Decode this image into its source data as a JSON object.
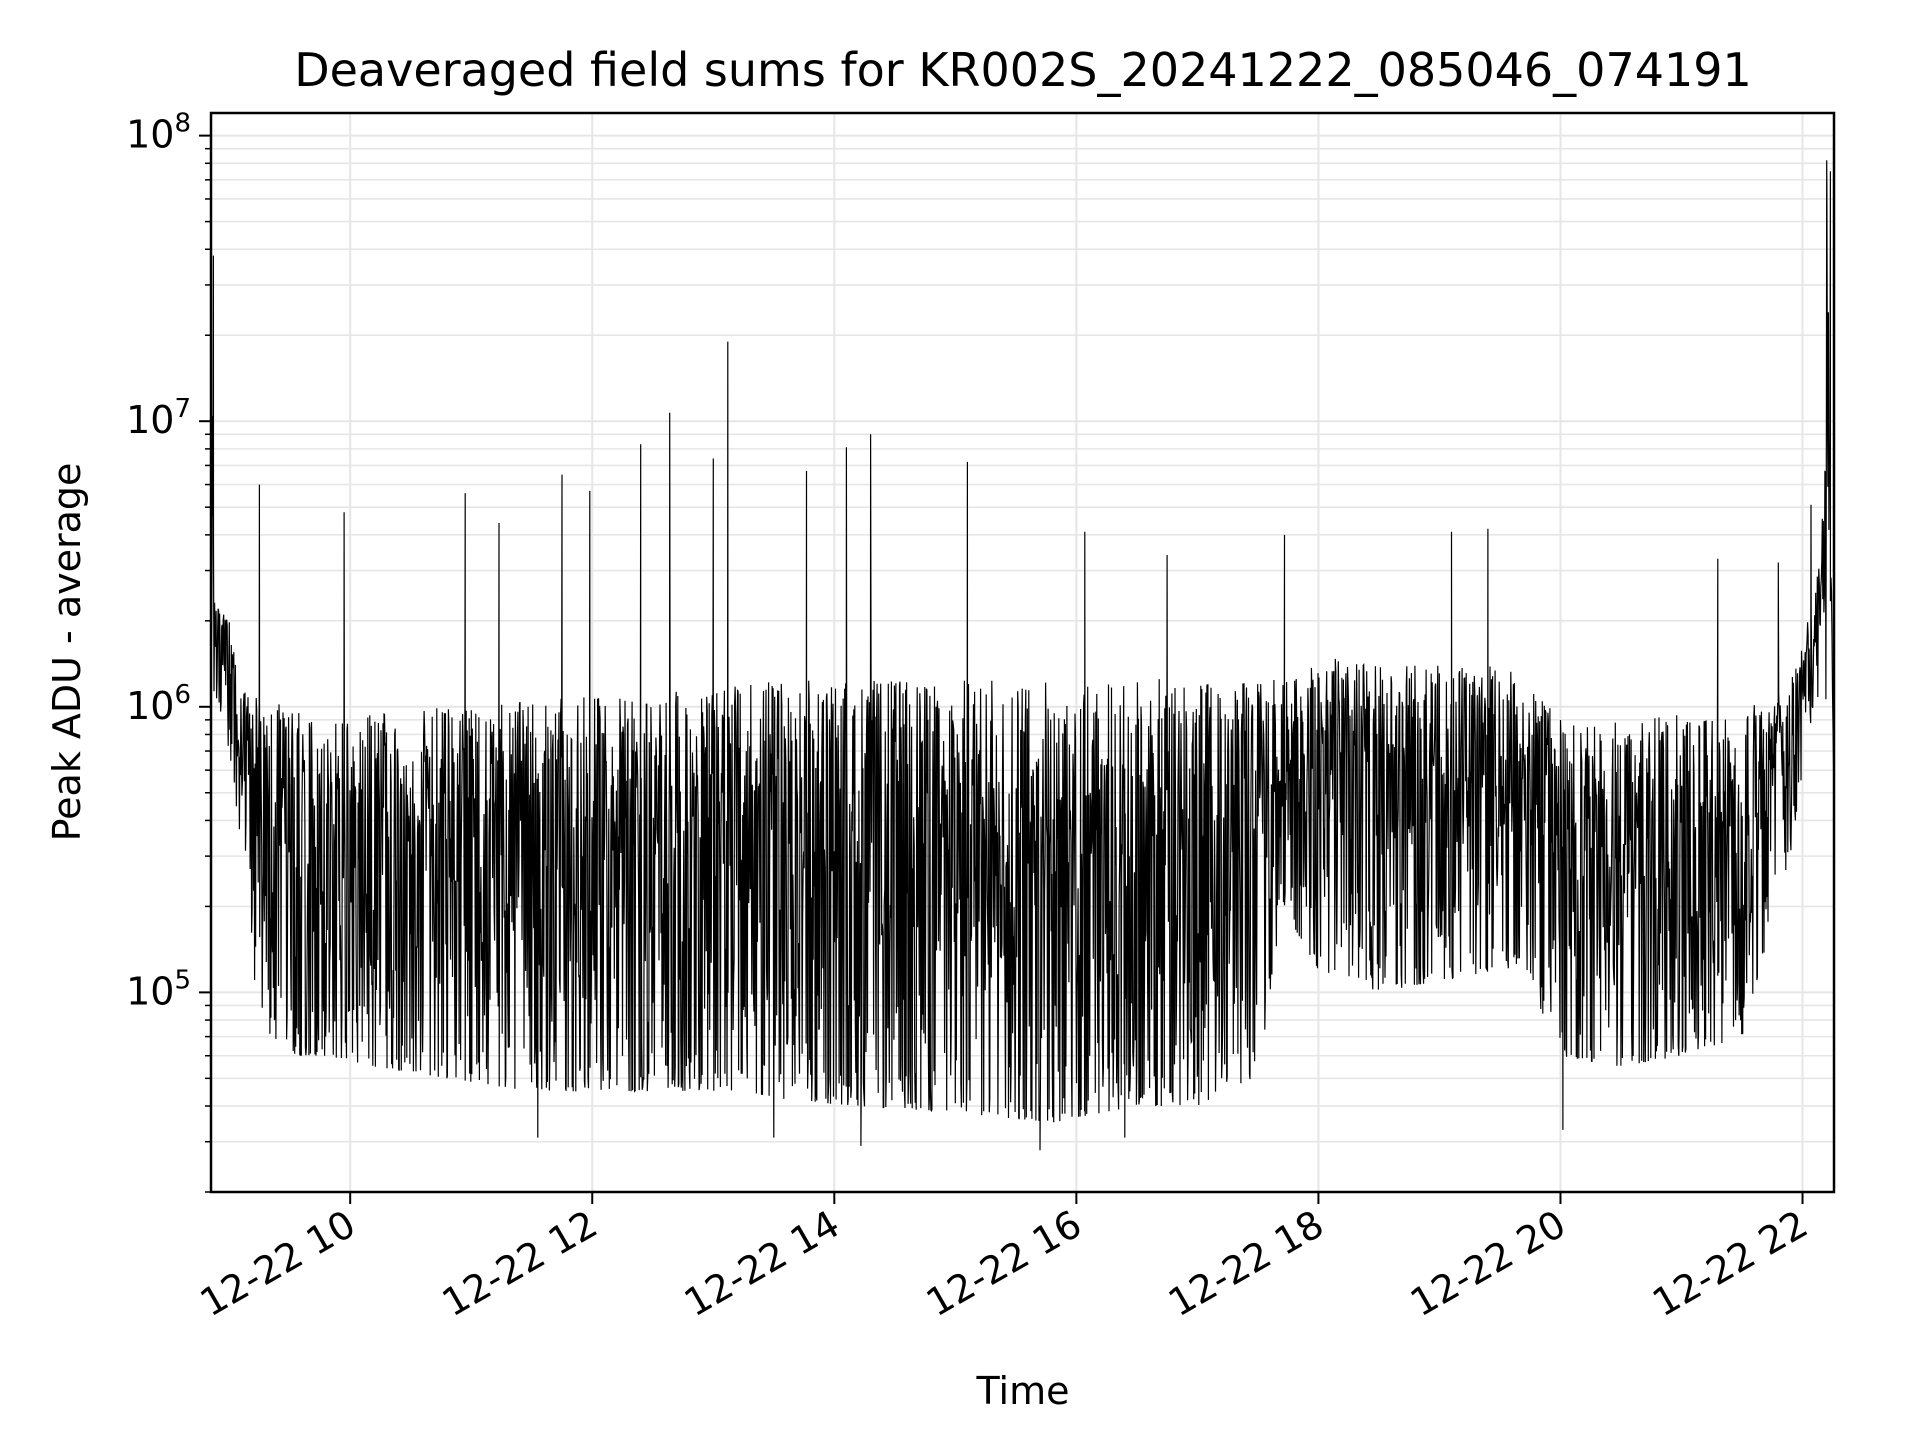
{
  "chart_data": {
    "type": "line",
    "title": "Deaveraged field sums for KR002S_20241222_085046_074191",
    "xlabel": "Time",
    "ylabel": "Peak ADU - average",
    "yscale": "log",
    "ylim": [
      20000,
      120000000
    ],
    "xlim_hours": [
      8.85,
      22.26
    ],
    "grid": true,
    "line_color": "#000000",
    "x_ticks": [
      {
        "hour": 10,
        "label": "12-22 10"
      },
      {
        "hour": 12,
        "label": "12-22 12"
      },
      {
        "hour": 14,
        "label": "12-22 14"
      },
      {
        "hour": 16,
        "label": "12-22 16"
      },
      {
        "hour": 18,
        "label": "12-22 18"
      },
      {
        "hour": 20,
        "label": "12-22 20"
      },
      {
        "hour": 22,
        "label": "12-22 22"
      }
    ],
    "y_ticks": [
      {
        "value": 100000,
        "base": "10",
        "exp": "5"
      },
      {
        "value": 1000000,
        "base": "10",
        "exp": "6"
      },
      {
        "value": 10000000,
        "base": "10",
        "exp": "7"
      },
      {
        "value": 100000000,
        "base": "10",
        "exp": "8"
      }
    ],
    "series": [
      {
        "x_hours": [
          8.85,
          8.88,
          8.92,
          9.0,
          9.1,
          9.2,
          9.3,
          9.5,
          9.8,
          10.2,
          10.8,
          11.5,
          12.2,
          13.0,
          13.2,
          13.6,
          14.2,
          15.0,
          15.8,
          16.5,
          17.0,
          17.5,
          17.7,
          18.0,
          18.5,
          19.0,
          19.5,
          19.7,
          20.0,
          20.5,
          21.0,
          21.5,
          21.9,
          22.0,
          22.1,
          22.17,
          22.2,
          22.26
        ],
        "upper": [
          30000000,
          2500000,
          2300000,
          2000000,
          1100000,
          1200000,
          1100000,
          1000000,
          900000,
          950000,
          1000000,
          1050000,
          1100000,
          1150000,
          1250000,
          1250000,
          1250000,
          1250000,
          1250000,
          1250000,
          1250000,
          1250000,
          1300000,
          1500000,
          1400000,
          1400000,
          1400000,
          1300000,
          900000,
          900000,
          950000,
          1000000,
          1200000,
          1800000,
          2300000,
          5000000,
          80000000,
          500000
        ],
        "lower": [
          1200000,
          1100000,
          1000000,
          700000,
          300000,
          110000,
          70000,
          60000,
          60000,
          55000,
          50000,
          45000,
          45000,
          45000,
          45000,
          42000,
          40000,
          38000,
          35000,
          40000,
          40000,
          50000,
          200000,
          120000,
          100000,
          110000,
          120000,
          120000,
          60000,
          55000,
          60000,
          70000,
          300000,
          600000,
          1000000,
          1200000,
          1000000,
          500000
        ],
        "spikes": [
          {
            "hour": 8.87,
            "value": 38000000
          },
          {
            "hour": 9.25,
            "value": 6000000
          },
          {
            "hour": 9.95,
            "value": 4800000
          },
          {
            "hour": 10.95,
            "value": 5600000
          },
          {
            "hour": 11.23,
            "value": 4400000
          },
          {
            "hour": 11.75,
            "value": 6500000
          },
          {
            "hour": 11.98,
            "value": 5700000
          },
          {
            "hour": 12.4,
            "value": 8300000
          },
          {
            "hour": 12.64,
            "value": 10700000
          },
          {
            "hour": 13.0,
            "value": 7400000
          },
          {
            "hour": 13.12,
            "value": 19000000
          },
          {
            "hour": 13.77,
            "value": 6700000
          },
          {
            "hour": 14.1,
            "value": 8100000
          },
          {
            "hour": 14.3,
            "value": 9000000
          },
          {
            "hour": 15.1,
            "value": 7200000
          },
          {
            "hour": 16.07,
            "value": 4100000
          },
          {
            "hour": 16.75,
            "value": 3400000
          },
          {
            "hour": 17.72,
            "value": 4000000
          },
          {
            "hour": 19.1,
            "value": 4100000
          },
          {
            "hour": 19.4,
            "value": 4200000
          },
          {
            "hour": 21.3,
            "value": 3300000
          },
          {
            "hour": 21.3,
            "value": 3300000
          },
          {
            "hour": 21.8,
            "value": 3200000
          },
          {
            "hour": 22.07,
            "value": 5100000
          },
          {
            "hour": 22.2,
            "value": 82000000
          },
          {
            "hour": 22.23,
            "value": 75000000
          }
        ],
        "dips": [
          {
            "hour": 13.5,
            "value": 31000
          },
          {
            "hour": 14.22,
            "value": 29000
          },
          {
            "hour": 15.7,
            "value": 28000
          },
          {
            "hour": 16.4,
            "value": 31000
          },
          {
            "hour": 20.02,
            "value": 33000
          },
          {
            "hour": 11.55,
            "value": 31000
          }
        ]
      }
    ]
  }
}
